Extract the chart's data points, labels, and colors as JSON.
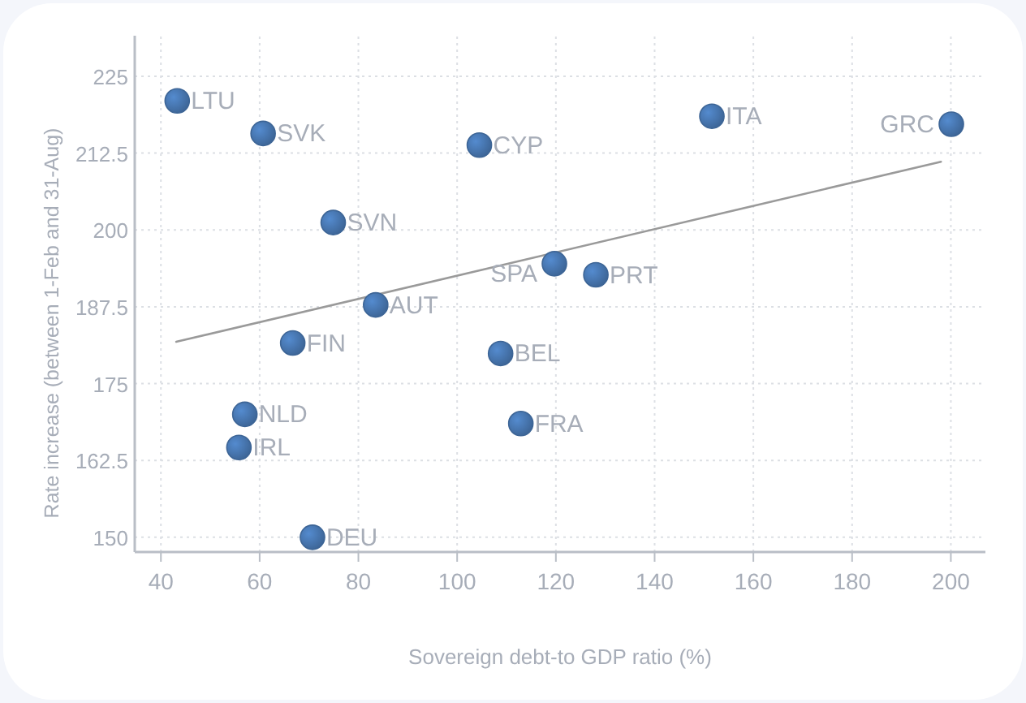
{
  "chart_data": {
    "type": "scatter",
    "xlabel": "Sovereign debt-to GDP ratio (%)",
    "ylabel": "Rate increase (between 1-Feb and 31-Aug)",
    "xlim": [
      34.7,
      207
    ],
    "xticks": [
      40,
      60,
      80,
      100,
      120,
      140,
      160,
      180,
      200
    ],
    "ylim": [
      147.6,
      231.6
    ],
    "yticks": [
      150,
      162.5,
      175,
      187.5,
      200,
      212.5,
      225
    ],
    "grid": true,
    "series": [
      {
        "marker": "circle",
        "color": "#3d6596",
        "x": [
          43.3,
          60.7,
          104.5,
          151.6,
          200.1,
          74.9,
          119.7,
          128.1,
          83.5,
          66.7,
          108.8,
          57,
          112.9,
          55.8,
          70.7
        ],
        "values": [
          221,
          215.7,
          213.8,
          218.5,
          217.2,
          201.2,
          194.5,
          192.7,
          187.8,
          181.6,
          179.9,
          170,
          168.5,
          164.6,
          150
        ]
      },
      {
        "type": "line",
        "color": "#9a9a9a",
        "x": [
          43.1,
          198
        ],
        "values": [
          181.8,
          211.1
        ]
      }
    ],
    "annotations": [
      {
        "text": "LTU",
        "x": 43.3,
        "y": 221
      },
      {
        "text": "SVK",
        "x": 60.7,
        "y": 215.7
      },
      {
        "text": "CYP",
        "x": 104.5,
        "y": 213.8
      },
      {
        "text": "ITA",
        "x": 151.6,
        "y": 218.5
      },
      {
        "text": "GRC",
        "x": 200.1,
        "y": 217.2
      },
      {
        "text": "SVN",
        "x": 74.9,
        "y": 201.2
      },
      {
        "text": "SPA",
        "x": 119.7,
        "y": 194.5
      },
      {
        "text": "PRT",
        "x": 128.1,
        "y": 192.7
      },
      {
        "text": "AUT",
        "x": 83.5,
        "y": 187.8
      },
      {
        "text": "FIN",
        "x": 66.7,
        "y": 181.6
      },
      {
        "text": "BEL",
        "x": 108.8,
        "y": 179.9
      },
      {
        "text": "NLD",
        "x": 57,
        "y": 170
      },
      {
        "text": "FRA",
        "x": 112.9,
        "y": 168.5
      },
      {
        "text": "IRL",
        "x": 55.8,
        "y": 164.6
      },
      {
        "text": "DEU",
        "x": 70.7,
        "y": 150
      }
    ]
  }
}
